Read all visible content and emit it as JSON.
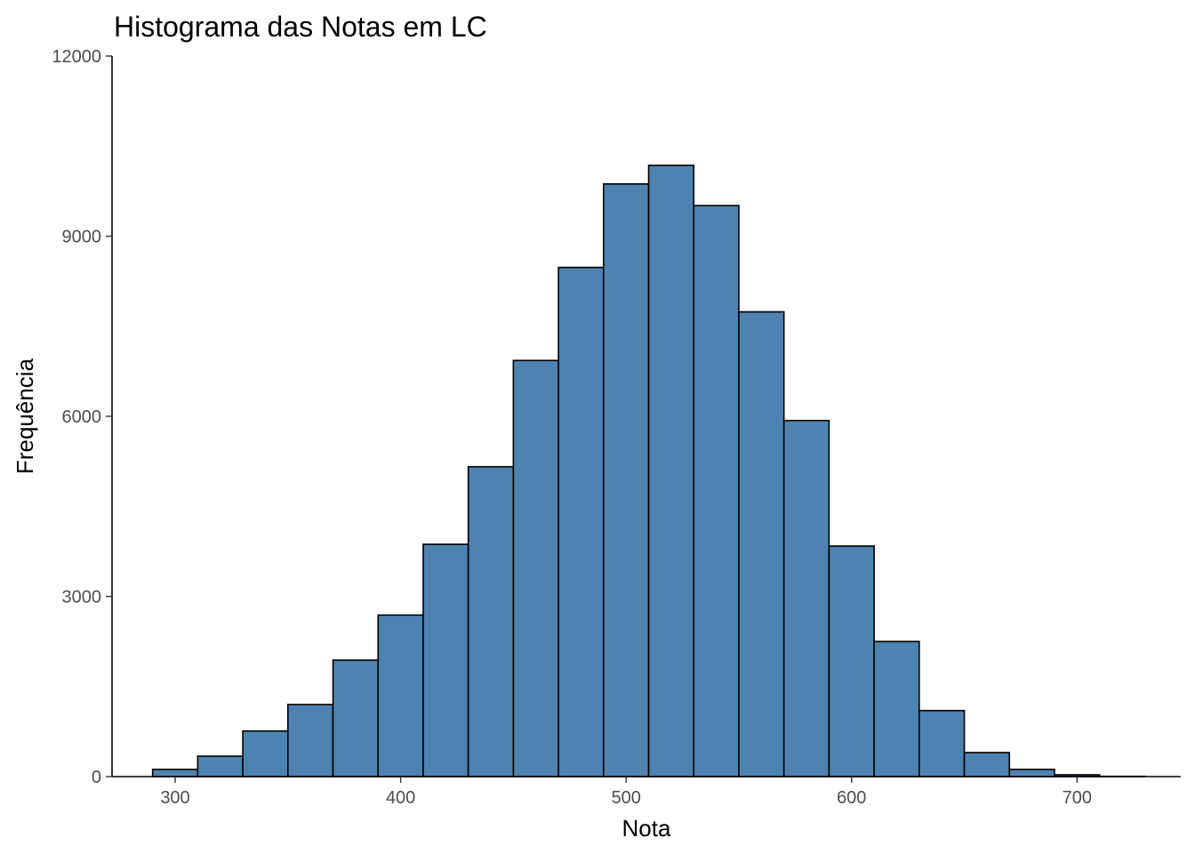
{
  "chart_data": {
    "type": "bar",
    "title": "Histograma das Notas em LC",
    "xlabel": "Nota",
    "ylabel": "Frequência",
    "bin_width": 20,
    "bins": [
      {
        "start": 290,
        "end": 310,
        "count": 120
      },
      {
        "start": 310,
        "end": 330,
        "count": 340
      },
      {
        "start": 330,
        "end": 350,
        "count": 760
      },
      {
        "start": 350,
        "end": 370,
        "count": 1200
      },
      {
        "start": 370,
        "end": 390,
        "count": 1940
      },
      {
        "start": 390,
        "end": 410,
        "count": 2690
      },
      {
        "start": 410,
        "end": 430,
        "count": 3870
      },
      {
        "start": 430,
        "end": 450,
        "count": 5160
      },
      {
        "start": 450,
        "end": 470,
        "count": 6930
      },
      {
        "start": 470,
        "end": 490,
        "count": 8480
      },
      {
        "start": 490,
        "end": 510,
        "count": 9870
      },
      {
        "start": 510,
        "end": 530,
        "count": 10180
      },
      {
        "start": 530,
        "end": 550,
        "count": 9510
      },
      {
        "start": 550,
        "end": 570,
        "count": 7740
      },
      {
        "start": 570,
        "end": 590,
        "count": 5930
      },
      {
        "start": 590,
        "end": 610,
        "count": 3840
      },
      {
        "start": 610,
        "end": 630,
        "count": 2250
      },
      {
        "start": 630,
        "end": 650,
        "count": 1100
      },
      {
        "start": 650,
        "end": 670,
        "count": 400
      },
      {
        "start": 670,
        "end": 690,
        "count": 120
      },
      {
        "start": 690,
        "end": 710,
        "count": 30
      },
      {
        "start": 710,
        "end": 730,
        "count": 5
      }
    ],
    "xlim": [
      272,
      746
    ],
    "ylim": [
      0,
      12000
    ],
    "x_ticks": [
      "300",
      "400",
      "500",
      "600",
      "700"
    ],
    "y_ticks": [
      "0",
      "3000",
      "6000",
      "9000",
      "12000"
    ],
    "grid": false,
    "legend": "none",
    "colors": {
      "bar_fill": "#4e83b1",
      "bar_outline": "#000000",
      "axis": "#000000",
      "tick_label": "#4d4d4d"
    }
  }
}
